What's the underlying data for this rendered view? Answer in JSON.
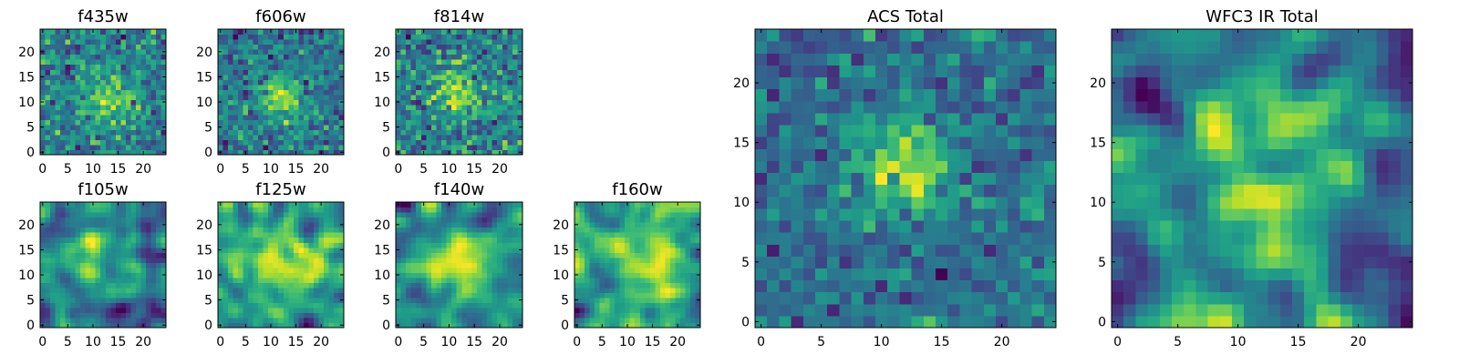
{
  "chart_data": {
    "type": "heatmap",
    "colormap": "viridis",
    "grid": false,
    "panels": [
      {
        "title": "f435w",
        "xticks": [
          "0",
          "5",
          "10",
          "15",
          "20"
        ],
        "yticks": [
          "0",
          "5",
          "10",
          "15",
          "20"
        ],
        "grid_size": 25,
        "texture": "noise",
        "seed": 11,
        "peak": [
          13,
          11
        ],
        "peak_strength": 0.35,
        "peak_width": 3.5
      },
      {
        "title": "f606w",
        "xticks": [
          "0",
          "5",
          "10",
          "15",
          "20"
        ],
        "yticks": [
          "0",
          "5",
          "10",
          "15",
          "20"
        ],
        "grid_size": 25,
        "texture": "noise",
        "seed": 23,
        "peak": [
          12,
          11
        ],
        "peak_strength": 0.45,
        "peak_width": 3.0
      },
      {
        "title": "f814w",
        "xticks": [
          "0",
          "5",
          "10",
          "15",
          "20"
        ],
        "yticks": [
          "0",
          "5",
          "10",
          "15",
          "20"
        ],
        "grid_size": 25,
        "texture": "noise",
        "seed": 37,
        "peak": [
          12,
          12
        ],
        "peak_strength": 0.3,
        "peak_width": 3.5
      },
      {
        "title": "f105w",
        "xticks": [
          "0",
          "5",
          "10",
          "15",
          "20"
        ],
        "yticks": [
          "0",
          "5",
          "10",
          "15",
          "20"
        ],
        "grid_size": 25,
        "texture": "smooth",
        "seed": 41,
        "peak": [
          12,
          13
        ],
        "peak_strength": 0.35,
        "peak_width": 5.0
      },
      {
        "title": "f125w",
        "xticks": [
          "0",
          "5",
          "10",
          "15",
          "20"
        ],
        "yticks": [
          "0",
          "5",
          "10",
          "15",
          "20"
        ],
        "grid_size": 25,
        "texture": "smooth",
        "seed": 53,
        "peak": [
          13,
          13
        ],
        "peak_strength": 0.3,
        "peak_width": 4.5
      },
      {
        "title": "f140w",
        "xticks": [
          "0",
          "5",
          "10",
          "15",
          "20"
        ],
        "yticks": [
          "0",
          "5",
          "10",
          "15",
          "20"
        ],
        "grid_size": 25,
        "texture": "smooth",
        "seed": 67,
        "peak": [
          12,
          13
        ],
        "peak_strength": 0.4,
        "peak_width": 4.0
      },
      {
        "title": "f160w",
        "xticks": [
          "0",
          "5",
          "10",
          "15",
          "20"
        ],
        "yticks": [
          "0",
          "5",
          "10",
          "15",
          "20"
        ],
        "grid_size": 25,
        "texture": "smooth",
        "seed": 79,
        "peak": [
          13,
          12
        ],
        "peak_strength": 0.35,
        "peak_width": 3.5
      },
      {
        "title": "ACS Total",
        "xticks": [
          "0",
          "5",
          "10",
          "15",
          "20"
        ],
        "yticks": [
          "0",
          "5",
          "10",
          "15",
          "20"
        ],
        "grid_size": 25,
        "texture": "noise",
        "seed": 97,
        "peak": [
          12,
          13
        ],
        "peak_strength": 0.5,
        "peak_width": 3.0
      },
      {
        "title": "WFC3 IR Total",
        "xticks": [
          "0",
          "5",
          "10",
          "15",
          "20"
        ],
        "yticks": [
          "0",
          "5",
          "10",
          "15",
          "20"
        ],
        "grid_size": 25,
        "texture": "smooth",
        "seed": 113,
        "peak": [
          12,
          13
        ],
        "peak_strength": 0.45,
        "peak_width": 5.0
      }
    ]
  }
}
